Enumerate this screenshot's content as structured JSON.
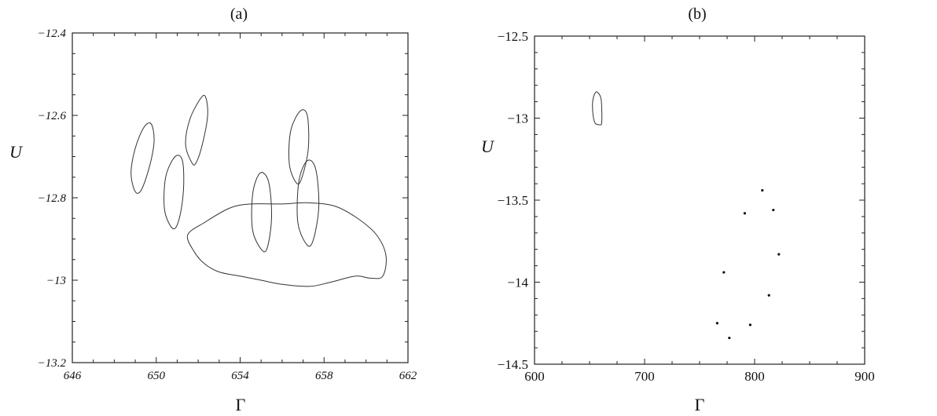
{
  "chart_data": [
    {
      "type": "line",
      "title": "(a)",
      "xlabel": "Γ",
      "ylabel": "U",
      "xlim": [
        646,
        662
      ],
      "ylim": [
        -13.2,
        -12.4
      ],
      "xticks": [
        "646",
        "650",
        "654",
        "658",
        "662"
      ],
      "yticks": [
        "-12.4",
        "-12.6",
        "-12.8",
        "-13",
        "-13.2"
      ],
      "series": [
        {
          "type": "closed-curve",
          "points": [
            [
              649.0,
              -12.785
            ],
            [
              648.8,
              -12.74
            ],
            [
              649.0,
              -12.68
            ],
            [
              649.4,
              -12.63
            ],
            [
              649.75,
              -12.62
            ],
            [
              649.9,
              -12.66
            ],
            [
              649.7,
              -12.72
            ],
            [
              649.3,
              -12.78
            ]
          ]
        },
        {
          "type": "closed-curve",
          "points": [
            [
              650.8,
              -12.875
            ],
            [
              650.4,
              -12.83
            ],
            [
              650.45,
              -12.75
            ],
            [
              650.9,
              -12.7
            ],
            [
              651.25,
              -12.71
            ],
            [
              651.3,
              -12.78
            ],
            [
              651.1,
              -12.85
            ]
          ]
        },
        {
          "type": "closed-curve",
          "points": [
            [
              651.7,
              -12.715
            ],
            [
              651.4,
              -12.67
            ],
            [
              651.6,
              -12.61
            ],
            [
              652.1,
              -12.56
            ],
            [
              652.35,
              -12.555
            ],
            [
              652.45,
              -12.6
            ],
            [
              652.2,
              -12.67
            ],
            [
              651.9,
              -12.715
            ]
          ]
        },
        {
          "type": "closed-curve",
          "points": [
            [
              655.1,
              -12.93
            ],
            [
              654.6,
              -12.88
            ],
            [
              654.6,
              -12.79
            ],
            [
              654.95,
              -12.74
            ],
            [
              655.35,
              -12.76
            ],
            [
              655.5,
              -12.84
            ],
            [
              655.35,
              -12.91
            ]
          ]
        },
        {
          "type": "closed-curve",
          "points": [
            [
              656.7,
              -12.765
            ],
            [
              656.35,
              -12.72
            ],
            [
              656.4,
              -12.64
            ],
            [
              656.85,
              -12.59
            ],
            [
              657.2,
              -12.6
            ],
            [
              657.25,
              -12.68
            ],
            [
              656.95,
              -12.75
            ]
          ]
        },
        {
          "type": "closed-curve",
          "points": [
            [
              657.2,
              -12.915
            ],
            [
              656.75,
              -12.86
            ],
            [
              656.8,
              -12.76
            ],
            [
              657.2,
              -12.71
            ],
            [
              657.6,
              -12.73
            ],
            [
              657.75,
              -12.82
            ],
            [
              657.5,
              -12.9
            ]
          ]
        },
        {
          "type": "closed-curve",
          "points": [
            [
              651.5,
              -12.89
            ],
            [
              652.3,
              -12.86
            ],
            [
              653.5,
              -12.825
            ],
            [
              654.5,
              -12.815
            ],
            [
              656.0,
              -12.815
            ],
            [
              657.2,
              -12.812
            ],
            [
              658.5,
              -12.82
            ],
            [
              659.6,
              -12.85
            ],
            [
              660.5,
              -12.89
            ],
            [
              660.95,
              -12.94
            ],
            [
              660.8,
              -12.99
            ],
            [
              660.2,
              -12.995
            ],
            [
              659.5,
              -12.99
            ],
            [
              658.3,
              -13.005
            ],
            [
              657.3,
              -13.015
            ],
            [
              656.0,
              -13.01
            ],
            [
              655.0,
              -13.0
            ],
            [
              654.0,
              -12.99
            ],
            [
              653.0,
              -12.98
            ],
            [
              652.3,
              -12.96
            ],
            [
              651.8,
              -12.93
            ]
          ]
        }
      ]
    },
    {
      "type": "scatter",
      "title": "(b)",
      "xlabel": "Γ",
      "ylabel": "U",
      "xlim": [
        600,
        900
      ],
      "ylim": [
        -14.5,
        -12.5
      ],
      "xticks": [
        "600",
        "700",
        "800",
        "900"
      ],
      "yticks": [
        "-12.5",
        "-13",
        "-13.5",
        "-14",
        "-14.5"
      ],
      "curve": {
        "type": "closed-curve",
        "points": [
          [
            656,
            -12.84
          ],
          [
            660,
            -12.87
          ],
          [
            661,
            -12.93
          ],
          [
            661,
            -13.03
          ],
          [
            659,
            -13.04
          ],
          [
            655,
            -13.03
          ],
          [
            653,
            -12.97
          ],
          [
            653,
            -12.89
          ]
        ]
      },
      "points": [
        {
          "x": 807,
          "y": -13.44
        },
        {
          "x": 817,
          "y": -13.56
        },
        {
          "x": 791,
          "y": -13.58
        },
        {
          "x": 822,
          "y": -13.83
        },
        {
          "x": 772,
          "y": -13.94
        },
        {
          "x": 813,
          "y": -14.08
        },
        {
          "x": 766,
          "y": -14.25
        },
        {
          "x": 796,
          "y": -14.26
        },
        {
          "x": 777,
          "y": -14.34
        }
      ]
    }
  ]
}
